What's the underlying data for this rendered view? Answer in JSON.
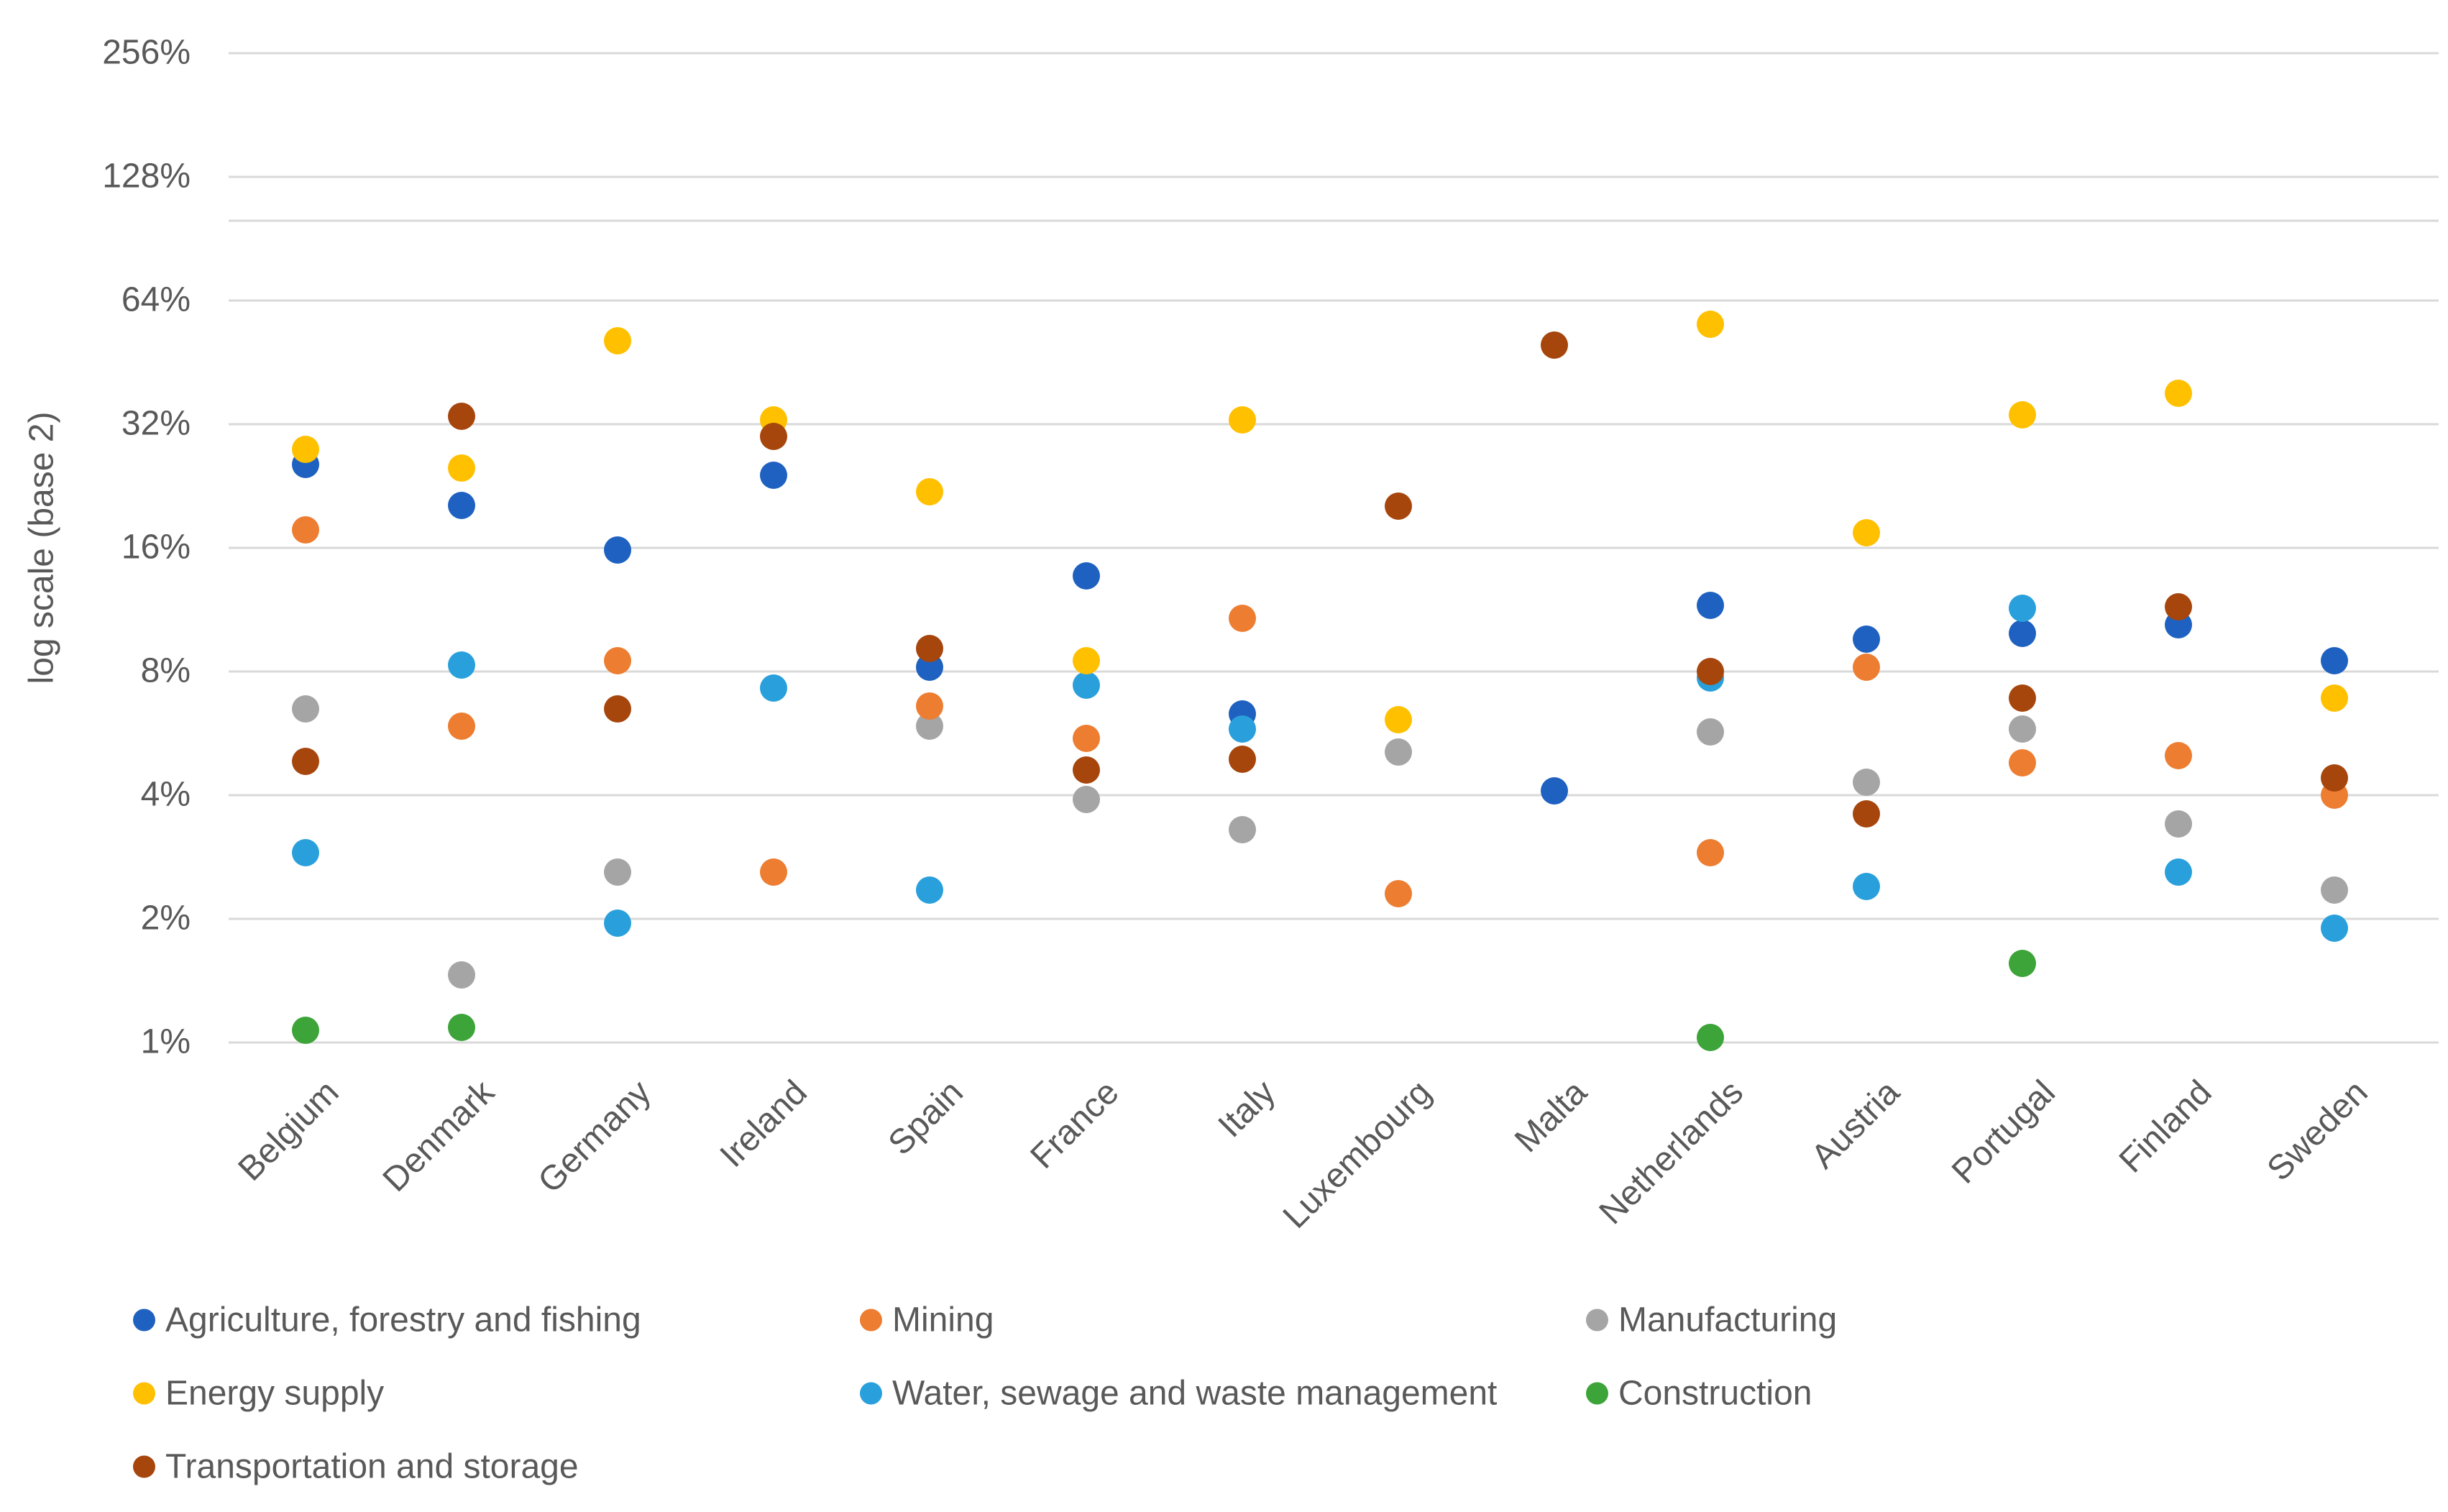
{
  "page": {
    "background_color": "#ffffff",
    "text_color": "#595959",
    "gridline_color": "#d9d9d9"
  },
  "chart_data": {
    "type": "scatter",
    "title": "",
    "xlabel": "",
    "ylabel": "log scale (base 2)",
    "y_axis": {
      "scale": "log-base-2",
      "unit": "%",
      "tick_labels": [
        "256%",
        "128%",
        "64%",
        "32%",
        "16%",
        "8%",
        "4%",
        "2%",
        "1%"
      ],
      "tick_values": [
        256,
        128,
        64,
        32,
        16,
        8,
        4,
        2,
        1
      ],
      "extra_unlabeled_gridline_value": 100,
      "ylim": [
        1,
        256
      ],
      "grid": true
    },
    "categories": [
      "Belgium",
      "Denmark",
      "Germany",
      "Ireland",
      "Spain",
      "France",
      "Italy",
      "Luxembourg",
      "Malta",
      "Netherlands",
      "Austria",
      "Portugal",
      "Finland",
      "Sweden"
    ],
    "series": [
      {
        "name": "Agriculture, forestry and fishing",
        "color": "#1f61c0",
        "values": [
          25.5,
          20.3,
          15.8,
          24,
          8.2,
          13.7,
          6.3,
          null,
          4.1,
          11.6,
          9.6,
          9.9,
          10.4,
          8.5
        ]
      },
      {
        "name": "Mining",
        "color": "#ed7d31",
        "values": [
          17.7,
          5.9,
          8.5,
          2.6,
          6.6,
          5.5,
          10.8,
          2.3,
          null,
          2.9,
          8.2,
          4.8,
          5.0,
          4.0
        ]
      },
      {
        "name": "Manufacturing",
        "color": "#a5a5a5",
        "values": [
          6.5,
          1.46,
          2.6,
          null,
          5.9,
          3.9,
          3.3,
          5.1,
          null,
          5.7,
          4.3,
          5.8,
          3.4,
          2.35
        ]
      },
      {
        "name": "Energy supply",
        "color": "#ffc000",
        "values": [
          27.8,
          25,
          51,
          32.8,
          21.9,
          8.5,
          32.8,
          6.1,
          null,
          56,
          17.4,
          33.7,
          38,
          6.9
        ]
      },
      {
        "name": "Water, sewage and waste management",
        "color": "#29a0dc",
        "values": [
          2.9,
          8.3,
          1.95,
          7.3,
          2.35,
          7.4,
          5.8,
          null,
          null,
          7.7,
          2.4,
          11.4,
          2.6,
          1.9
        ]
      },
      {
        "name": "Construction",
        "color": "#3ca438",
        "values": [
          1.07,
          1.09,
          null,
          null,
          null,
          null,
          null,
          null,
          null,
          1.03,
          null,
          1.56,
          null,
          null
        ]
      },
      {
        "name": "Transportation and storage",
        "color": "#a6460d",
        "values": [
          4.84,
          33.4,
          6.5,
          29.9,
          9.1,
          4.6,
          4.9,
          20.2,
          49.9,
          8.0,
          3.6,
          6.9,
          11.5,
          4.4
        ]
      }
    ],
    "legend": {
      "position": "bottom-left",
      "items": [
        {
          "series_index": 0,
          "col": 0,
          "row": 0
        },
        {
          "series_index": 1,
          "col": 1,
          "row": 0
        },
        {
          "series_index": 2,
          "col": 2,
          "row": 0
        },
        {
          "series_index": 3,
          "col": 0,
          "row": 1
        },
        {
          "series_index": 4,
          "col": 1,
          "row": 1
        },
        {
          "series_index": 5,
          "col": 2,
          "row": 1
        },
        {
          "series_index": 6,
          "col": 0,
          "row": 2
        }
      ]
    },
    "z_order_series_indices": [
      2,
      5,
      0,
      4,
      1,
      3,
      6
    ]
  }
}
